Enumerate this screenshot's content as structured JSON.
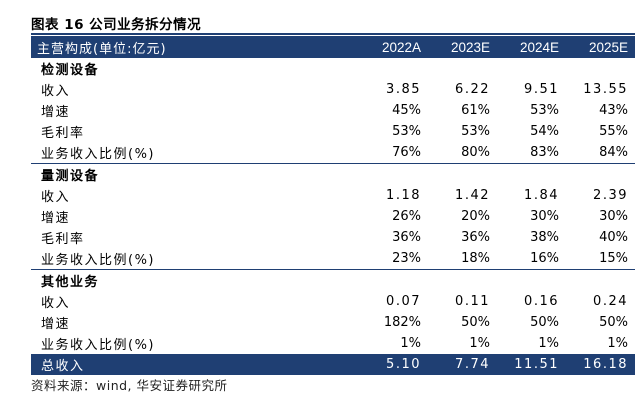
{
  "title": "图表 16 公司业务拆分情况",
  "header": {
    "label": "主营构成(单位:亿元)",
    "years": [
      "2022A",
      "2023E",
      "2024E",
      "2025E"
    ]
  },
  "sections": [
    {
      "name": "检测设备",
      "rows": [
        {
          "label": "收入",
          "values": [
            "3.85",
            "6.22",
            "9.51",
            "13.55"
          ]
        },
        {
          "label": "增速",
          "values": [
            "45%",
            "61%",
            "53%",
            "43%"
          ]
        },
        {
          "label": "毛利率",
          "values": [
            "53%",
            "53%",
            "54%",
            "55%"
          ]
        },
        {
          "label": "业务收入比例(%)",
          "values": [
            "76%",
            "80%",
            "83%",
            "84%"
          ]
        }
      ]
    },
    {
      "name": "量测设备",
      "rows": [
        {
          "label": "收入",
          "values": [
            "1.18",
            "1.42",
            "1.84",
            "2.39"
          ]
        },
        {
          "label": "增速",
          "values": [
            "26%",
            "20%",
            "30%",
            "30%"
          ]
        },
        {
          "label": "毛利率",
          "values": [
            "36%",
            "36%",
            "38%",
            "40%"
          ]
        },
        {
          "label": "业务收入比例(%)",
          "values": [
            "23%",
            "18%",
            "16%",
            "15%"
          ]
        }
      ]
    },
    {
      "name": "其他业务",
      "rows": [
        {
          "label": "收入",
          "values": [
            "0.07",
            "0.11",
            "0.16",
            "0.24"
          ]
        },
        {
          "label": "增速",
          "values": [
            "182%",
            "50%",
            "50%",
            "50%"
          ]
        },
        {
          "label": "业务收入比例(%)",
          "values": [
            "1%",
            "1%",
            "1%",
            "1%"
          ]
        }
      ]
    }
  ],
  "total": {
    "label": "总收入",
    "values": [
      "5.10",
      "7.74",
      "11.51",
      "16.18"
    ]
  },
  "source": "资料来源：wind, 华安证券研究所",
  "colors": {
    "header_bg": "#1f3f73",
    "header_text": "#ffffff"
  }
}
